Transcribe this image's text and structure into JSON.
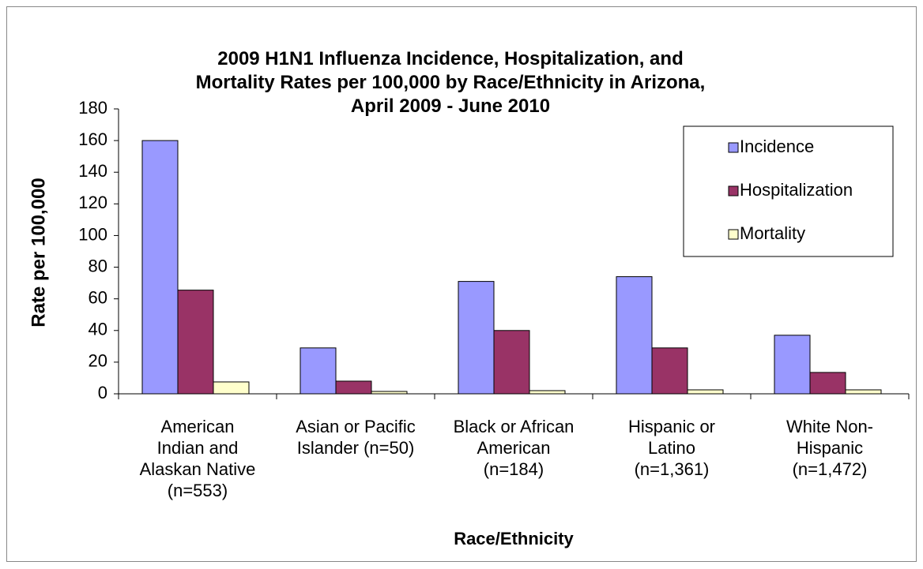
{
  "chart_data": {
    "type": "bar",
    "title": "2009 H1N1 Influenza Incidence, Hospitalization, and\nMortality Rates per 100,000 by Race/Ethnicity in Arizona,\nApril 2009 - June 2010",
    "x_label": "Race/Ethnicity",
    "y_label": "Rate per 100,000",
    "categories": [
      "American\nIndian and\nAlaskan Native\n(n=553)",
      "Asian or Pacific\nIslander (n=50)",
      "Black or African\nAmerican\n(n=184)",
      "Hispanic or\nLatino\n(n=1,361)",
      "White Non-\nHispanic\n(n=1,472)"
    ],
    "series": [
      {
        "name": "Incidence",
        "color": "#9999FF",
        "values": [
          160,
          29,
          71,
          74,
          37
        ]
      },
      {
        "name": "Hospitalization",
        "color": "#993366",
        "values": [
          65.5,
          8,
          40,
          29,
          13.5
        ]
      },
      {
        "name": "Mortality",
        "color": "#FFFFCC",
        "values": [
          7.5,
          1.5,
          2,
          2.5,
          2.5
        ]
      }
    ],
    "ylim": [
      0,
      180
    ],
    "yticks": [
      0,
      20,
      40,
      60,
      80,
      100,
      120,
      140,
      160,
      180
    ],
    "grid": false,
    "legend": "upper right"
  }
}
